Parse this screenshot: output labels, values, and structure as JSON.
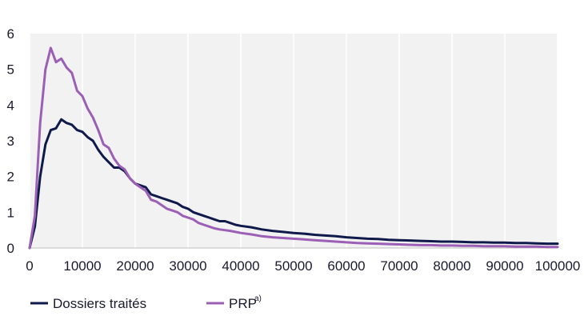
{
  "chart_data": {
    "type": "line",
    "title": "",
    "xlabel": "",
    "ylabel": "",
    "xlim": [
      0,
      100000
    ],
    "ylim": [
      0,
      6
    ],
    "x_ticks": [
      0,
      10000,
      20000,
      30000,
      40000,
      50000,
      60000,
      70000,
      80000,
      90000,
      100000
    ],
    "x_tick_labels": [
      "0",
      "10000",
      "20000",
      "30000",
      "40000",
      "50000",
      "60000",
      "70000",
      "80000",
      "90000",
      "100000"
    ],
    "y_ticks": [
      0,
      1,
      2,
      3,
      4,
      5,
      6
    ],
    "y_tick_labels": [
      "0",
      "1",
      "2",
      "3",
      "4",
      "5",
      "6"
    ],
    "grid": "vertical",
    "legend_position": "bottom-left",
    "x": [
      0,
      1000,
      2000,
      3000,
      4000,
      5000,
      6000,
      7000,
      8000,
      9000,
      10000,
      11000,
      12000,
      13000,
      14000,
      15000,
      16000,
      17000,
      18000,
      19000,
      20000,
      21000,
      22000,
      23000,
      24000,
      25000,
      26000,
      27000,
      28000,
      29000,
      30000,
      31000,
      32000,
      33000,
      34000,
      35000,
      36000,
      37000,
      38000,
      39000,
      40000,
      42000,
      44000,
      46000,
      48000,
      50000,
      52000,
      54000,
      56000,
      58000,
      60000,
      62000,
      64000,
      66000,
      68000,
      70000,
      72000,
      74000,
      76000,
      78000,
      80000,
      82000,
      84000,
      86000,
      88000,
      90000,
      92000,
      94000,
      96000,
      98000,
      100000
    ],
    "series": [
      {
        "name": "Dossiers traités",
        "color": "#0f1a4a",
        "values": [
          0.0,
          0.6,
          2.0,
          2.9,
          3.3,
          3.35,
          3.6,
          3.5,
          3.45,
          3.3,
          3.25,
          3.1,
          3.0,
          2.75,
          2.55,
          2.4,
          2.25,
          2.25,
          2.15,
          1.95,
          1.8,
          1.75,
          1.7,
          1.5,
          1.45,
          1.4,
          1.35,
          1.3,
          1.25,
          1.15,
          1.1,
          1.0,
          0.95,
          0.9,
          0.85,
          0.8,
          0.75,
          0.75,
          0.7,
          0.65,
          0.62,
          0.58,
          0.52,
          0.48,
          0.45,
          0.42,
          0.4,
          0.37,
          0.35,
          0.33,
          0.3,
          0.28,
          0.26,
          0.25,
          0.23,
          0.22,
          0.21,
          0.2,
          0.19,
          0.18,
          0.18,
          0.17,
          0.16,
          0.16,
          0.15,
          0.15,
          0.14,
          0.14,
          0.13,
          0.12,
          0.12
        ]
      },
      {
        "name": "PRP",
        "color": "#9b5fb5",
        "values": [
          0.0,
          0.9,
          3.5,
          5.0,
          5.6,
          5.2,
          5.3,
          5.05,
          4.9,
          4.4,
          4.25,
          3.9,
          3.65,
          3.3,
          2.9,
          2.8,
          2.5,
          2.3,
          2.2,
          1.95,
          1.8,
          1.7,
          1.6,
          1.35,
          1.3,
          1.2,
          1.1,
          1.05,
          1.0,
          0.9,
          0.85,
          0.8,
          0.7,
          0.65,
          0.6,
          0.55,
          0.52,
          0.5,
          0.48,
          0.45,
          0.42,
          0.38,
          0.33,
          0.3,
          0.28,
          0.26,
          0.24,
          0.22,
          0.2,
          0.18,
          0.16,
          0.14,
          0.13,
          0.12,
          0.11,
          0.1,
          0.09,
          0.08,
          0.08,
          0.07,
          0.07,
          0.06,
          0.06,
          0.05,
          0.05,
          0.05,
          0.04,
          0.04,
          0.04,
          0.03,
          0.03
        ]
      }
    ]
  },
  "legend": {
    "items": [
      {
        "label": "Dossiers traités",
        "sup": "",
        "color": "#0f1a4a"
      },
      {
        "label": "PRP",
        "sup": "a)",
        "color": "#9b5fb5"
      }
    ]
  }
}
